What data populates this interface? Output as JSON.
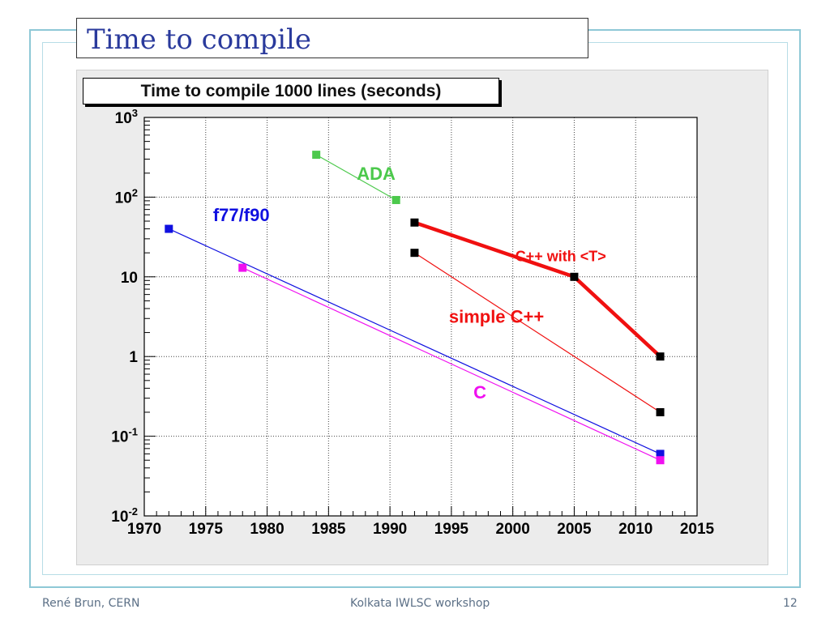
{
  "slide": {
    "title": "Time to compile",
    "footer_left": "René Brun, CERN",
    "footer_center": "Kolkata IWLSC workshop",
    "footer_right": "12"
  },
  "chart_data": {
    "type": "line",
    "title": "Time to compile 1000 lines (seconds)",
    "xlabel": "",
    "ylabel": "",
    "xlim": [
      1970,
      2015
    ],
    "ylim": [
      0.01,
      1000
    ],
    "yscale": "log",
    "grid": true,
    "x_ticks": [
      "1970",
      "1975",
      "1980",
      "1985",
      "1990",
      "1995",
      "2000",
      "2005",
      "2010",
      "2015"
    ],
    "y_ticks": [
      {
        "value": 1000,
        "base": "10",
        "exp": "3"
      },
      {
        "value": 100,
        "base": "10",
        "exp": "2"
      },
      {
        "value": 10,
        "base": "10",
        "exp": ""
      },
      {
        "value": 1,
        "base": "1",
        "exp": ""
      },
      {
        "value": 0.1,
        "base": "10",
        "exp": "-1"
      },
      {
        "value": 0.01,
        "base": "10",
        "exp": "-2"
      }
    ],
    "series": [
      {
        "name": "ADA",
        "color": "#4cc94c",
        "points": [
          {
            "x": 1984,
            "y": 340
          },
          {
            "x": 1990.5,
            "y": 92
          }
        ]
      },
      {
        "name": "f77/f90",
        "color": "#1010e0",
        "points": [
          {
            "x": 1972,
            "y": 40
          },
          {
            "x": 2012,
            "y": 0.06
          }
        ]
      },
      {
        "name": "C",
        "color": "#f010f0",
        "points": [
          {
            "x": 1978,
            "y": 13
          },
          {
            "x": 2012,
            "y": 0.05
          }
        ]
      },
      {
        "name": "C++ with <T>",
        "color": "#f01010",
        "thick": true,
        "points": [
          {
            "x": 1992,
            "y": 48
          },
          {
            "x": 2005,
            "y": 10
          },
          {
            "x": 2012,
            "y": 1
          }
        ]
      },
      {
        "name": "simple C++",
        "color": "#f01010",
        "points": [
          {
            "x": 1992,
            "y": 20
          },
          {
            "x": 2012,
            "y": 0.2
          }
        ]
      }
    ],
    "annotations": [
      {
        "text": "ADA",
        "color": "#4cc94c",
        "x": 1987.3,
        "y": 200
      },
      {
        "text": "f77/f90",
        "color": "#1010e0",
        "x": 1975.6,
        "y": 60
      },
      {
        "text": "C++ with <T>",
        "color": "#f01010",
        "x": 2000.2,
        "y": 19
      },
      {
        "text": "simple C++",
        "color": "#f01010",
        "x": 1994.8,
        "y": 3.2
      },
      {
        "text": "C",
        "color": "#f010f0",
        "x": 1996.8,
        "y": 0.36
      }
    ]
  }
}
